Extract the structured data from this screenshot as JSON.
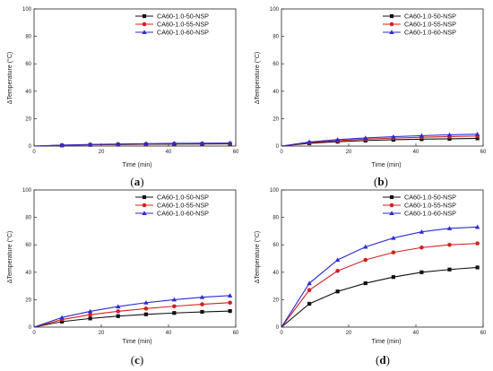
{
  "colors": {
    "series": [
      "#111111",
      "#d42020",
      "#2a2ad4"
    ],
    "axis": "#222222"
  },
  "chart_data": [
    {
      "type": "line",
      "label": "(a)",
      "xlabel": "Time (min)",
      "ylabel": "ΔTemperature (°C)",
      "xlim": [
        0,
        60
      ],
      "ylim": [
        0,
        100
      ],
      "xticks": [
        0,
        20,
        40,
        60
      ],
      "yticks": [
        0,
        20,
        40,
        60,
        80,
        100
      ],
      "legend_position": "top-right",
      "x": [
        0,
        8.3,
        16.7,
        25,
        33.3,
        41.7,
        50,
        58.3
      ],
      "series": [
        {
          "name": "CA60-1.0-50-NSP",
          "marker": "square",
          "values": [
            0,
            0.5,
            0.9,
            1.1,
            1.3,
            1.4,
            1.5,
            1.6
          ]
        },
        {
          "name": "CA60-1.0-55-NSP",
          "marker": "circle",
          "values": [
            0,
            0.6,
            1.0,
            1.3,
            1.5,
            1.7,
            1.8,
            1.9
          ]
        },
        {
          "name": "CA60-1.0-60-NSP",
          "marker": "triangle",
          "values": [
            0,
            0.7,
            1.2,
            1.5,
            1.8,
            2.0,
            2.1,
            2.2
          ]
        }
      ]
    },
    {
      "type": "line",
      "label": "(b)",
      "xlabel": "Time (min)",
      "ylabel": "ΔTemperature (°C)",
      "xlim": [
        0,
        60
      ],
      "ylim": [
        0,
        100
      ],
      "xticks": [
        0,
        20,
        40,
        60
      ],
      "yticks": [
        0,
        20,
        40,
        60,
        80,
        100
      ],
      "legend_position": "top-right",
      "x": [
        0,
        8.3,
        16.7,
        25,
        33.3,
        41.7,
        50,
        58.3
      ],
      "series": [
        {
          "name": "CA60-1.0-50-NSP",
          "marker": "square",
          "values": [
            0,
            2.0,
            3.2,
            4.0,
            4.6,
            5.0,
            5.3,
            5.6
          ]
        },
        {
          "name": "CA60-1.0-55-NSP",
          "marker": "circle",
          "values": [
            0,
            2.5,
            4.0,
            5.0,
            5.8,
            6.4,
            6.9,
            7.3
          ]
        },
        {
          "name": "CA60-1.0-60-NSP",
          "marker": "triangle",
          "values": [
            0,
            3.0,
            4.7,
            5.9,
            6.8,
            7.6,
            8.2,
            8.7
          ]
        }
      ]
    },
    {
      "type": "line",
      "label": "(c)",
      "xlabel": "Time (min)",
      "ylabel": "ΔTemperature (°C)",
      "xlim": [
        0,
        60
      ],
      "ylim": [
        0,
        100
      ],
      "xticks": [
        0,
        20,
        40,
        60
      ],
      "yticks": [
        0,
        20,
        40,
        60,
        80,
        100
      ],
      "legend_position": "top-right",
      "x": [
        0,
        8.3,
        16.7,
        25,
        33.3,
        41.7,
        50,
        58.3
      ],
      "series": [
        {
          "name": "CA60-1.0-50-NSP",
          "marker": "square",
          "values": [
            0,
            4.0,
            6.3,
            8.0,
            9.3,
            10.3,
            11.1,
            11.7
          ]
        },
        {
          "name": "CA60-1.0-55-NSP",
          "marker": "circle",
          "values": [
            0,
            5.5,
            9.0,
            11.5,
            13.5,
            15.2,
            16.6,
            17.8
          ]
        },
        {
          "name": "CA60-1.0-60-NSP",
          "marker": "triangle",
          "values": [
            0,
            7.0,
            11.5,
            15.0,
            17.8,
            20.0,
            21.8,
            23.0
          ]
        }
      ]
    },
    {
      "type": "line",
      "label": "(d)",
      "xlabel": "Time (min)",
      "ylabel": "ΔTemperature (°C)",
      "xlim": [
        0,
        60
      ],
      "ylim": [
        0,
        100
      ],
      "xticks": [
        0,
        20,
        40,
        60
      ],
      "yticks": [
        0,
        20,
        40,
        60,
        80,
        100
      ],
      "legend_position": "top-left",
      "x": [
        0,
        8.3,
        16.7,
        25,
        33.3,
        41.7,
        50,
        58.3
      ],
      "series": [
        {
          "name": "CA60-1.0-50-NSP",
          "marker": "square",
          "values": [
            0,
            17,
            26,
            32,
            36.5,
            40,
            42,
            43.5
          ]
        },
        {
          "name": "CA60-1.0-55-NSP",
          "marker": "circle",
          "values": [
            0,
            27,
            41,
            49,
            54.5,
            58,
            60,
            61
          ]
        },
        {
          "name": "CA60-1.0-60-NSP",
          "marker": "triangle",
          "values": [
            0,
            32,
            49,
            58.5,
            65,
            69.5,
            72,
            73
          ]
        }
      ]
    }
  ]
}
